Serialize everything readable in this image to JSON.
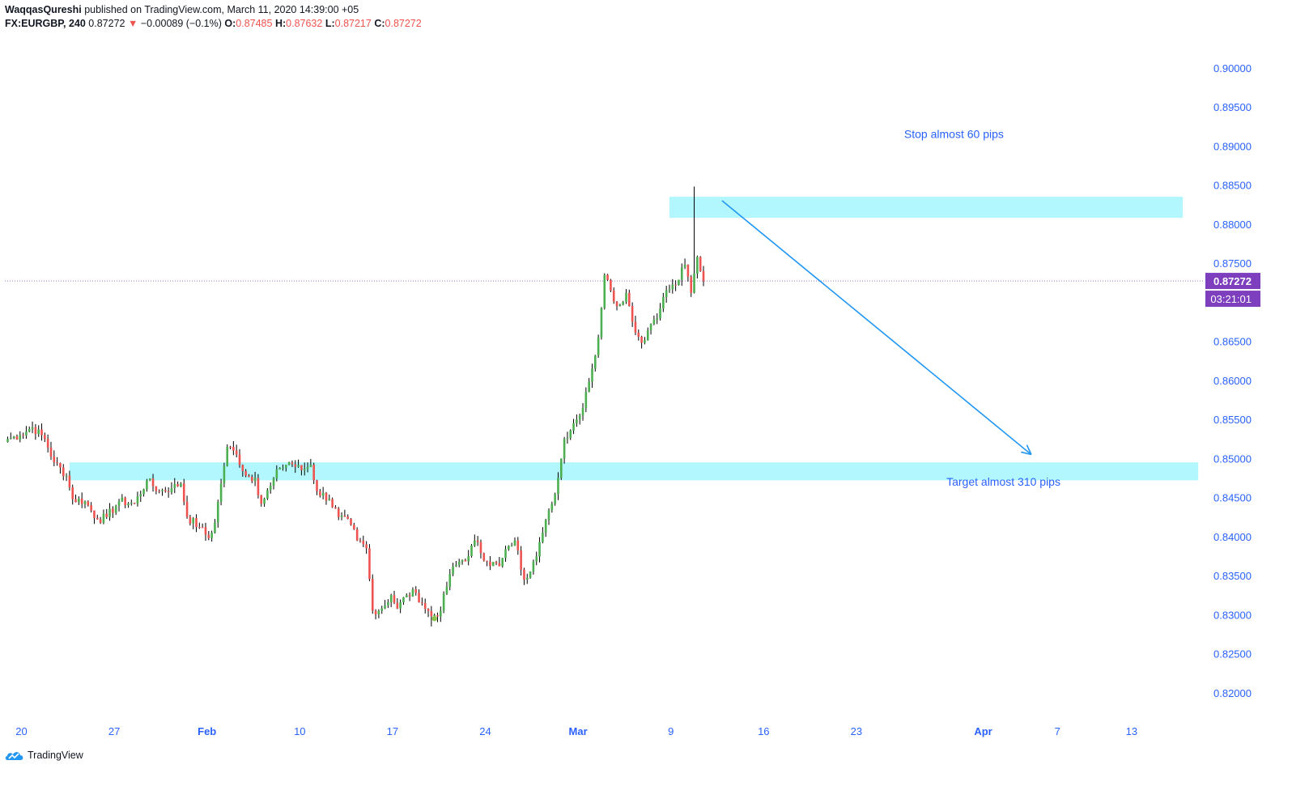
{
  "header": {
    "author": "WaqqasQureshi",
    "published": "published on TradingView.com, March 11, 2020 14:39:00 +05",
    "symbol": "FX:EURGBP, 240",
    "last": "0.87272",
    "arrow": "▼",
    "change": "−0.00089 (−0.1%)",
    "o_label": "O:",
    "o_value": "0.87485",
    "h_label": "H:",
    "h_value": "0.87632",
    "l_label": "L:",
    "l_value": "0.87217",
    "c_label": "C:",
    "c_value": "0.87272"
  },
  "branding": {
    "logo_text": "TradingView",
    "icon": "tradingview-cloud-icon"
  },
  "colors": {
    "up": "#4caf50",
    "down": "#ef5350",
    "wick": "#000000",
    "zone": "#b2f7fd",
    "annotation": "#2962ff",
    "arrow": "#2196f3",
    "price_tag": "#7e3fbf",
    "axis_text": "#2962ff",
    "date_text": "#2962ff"
  },
  "chart_data": {
    "type": "candlestick",
    "title": "",
    "symbol": "FX:EURGBP",
    "interval": "240",
    "ylim": [
      0.8175,
      0.9035
    ],
    "y_ticks": [
      "0.90000",
      "0.89500",
      "0.89000",
      "0.88500",
      "0.88000",
      "0.87500",
      "0.87000",
      "0.86500",
      "0.86000",
      "0.85500",
      "0.85000",
      "0.84500",
      "0.84000",
      "0.83500",
      "0.83000",
      "0.82500",
      "0.82000"
    ],
    "x_ticks": [
      {
        "label": "20",
        "bold": false,
        "index": 0
      },
      {
        "label": "27",
        "bold": false,
        "index": 30
      },
      {
        "label": "Feb",
        "bold": true,
        "index": 60
      },
      {
        "label": "10",
        "bold": false,
        "index": 90
      },
      {
        "label": "17",
        "bold": false,
        "index": 120
      },
      {
        "label": "24",
        "bold": false,
        "index": 150
      },
      {
        "label": "Mar",
        "bold": true,
        "index": 180
      },
      {
        "label": "9",
        "bold": false,
        "index": 210
      },
      {
        "label": "16",
        "bold": false,
        "index": 240
      },
      {
        "label": "23",
        "bold": false,
        "index": 270
      },
      {
        "label": "Apr",
        "bold": true,
        "index": 311
      },
      {
        "label": "7",
        "bold": false,
        "index": 335
      },
      {
        "label": "13",
        "bold": false,
        "index": 359
      }
    ],
    "anchor_closes": [
      [
        0,
        0.8525
      ],
      [
        4,
        0.853
      ],
      [
        8,
        0.854
      ],
      [
        12,
        0.8525
      ],
      [
        15,
        0.8495
      ],
      [
        19,
        0.8478
      ],
      [
        21,
        0.8448
      ],
      [
        25,
        0.8445
      ],
      [
        29,
        0.8422
      ],
      [
        32,
        0.8425
      ],
      [
        36,
        0.8445
      ],
      [
        41,
        0.8442
      ],
      [
        45,
        0.8472
      ],
      [
        49,
        0.8458
      ],
      [
        53,
        0.8462
      ],
      [
        56,
        0.8468
      ],
      [
        58,
        0.8425
      ],
      [
        62,
        0.8412
      ],
      [
        65,
        0.8398
      ],
      [
        67,
        0.8418
      ],
      [
        69,
        0.8468
      ],
      [
        71,
        0.8515
      ],
      [
        74,
        0.8505
      ],
      [
        77,
        0.8478
      ],
      [
        80,
        0.8475
      ],
      [
        82,
        0.8442
      ],
      [
        85,
        0.8465
      ],
      [
        88,
        0.8488
      ],
      [
        91,
        0.8495
      ],
      [
        95,
        0.8485
      ],
      [
        98,
        0.8492
      ],
      [
        100,
        0.8458
      ],
      [
        104,
        0.8448
      ],
      [
        107,
        0.8425
      ],
      [
        111,
        0.8415
      ],
      [
        113,
        0.8395
      ],
      [
        116,
        0.8385
      ],
      [
        118,
        0.8305
      ],
      [
        121,
        0.8308
      ],
      [
        124,
        0.8325
      ],
      [
        126,
        0.8308
      ],
      [
        129,
        0.8325
      ],
      [
        132,
        0.8328
      ],
      [
        134,
        0.8315
      ],
      [
        137,
        0.8298
      ],
      [
        140,
        0.8305
      ],
      [
        143,
        0.8352
      ],
      [
        146,
        0.8368
      ],
      [
        149,
        0.8375
      ],
      [
        151,
        0.8395
      ],
      [
        155,
        0.8368
      ],
      [
        159,
        0.8362
      ],
      [
        162,
        0.8388
      ],
      [
        164,
        0.8395
      ],
      [
        167,
        0.8345
      ],
      [
        170,
        0.8368
      ],
      [
        173,
        0.8405
      ],
      [
        176,
        0.8442
      ],
      [
        178,
        0.8475
      ],
      [
        180,
        0.8525
      ],
      [
        183,
        0.8545
      ],
      [
        185,
        0.8555
      ],
      [
        187,
        0.8585
      ],
      [
        189,
        0.8615
      ],
      [
        191,
        0.8655
      ],
      [
        193,
        0.8735
      ],
      [
        195,
        0.8715
      ],
      [
        197,
        0.8695
      ],
      [
        200,
        0.8712
      ],
      [
        202,
        0.8675
      ],
      [
        205,
        0.8648
      ],
      [
        208,
        0.8672
      ],
      [
        211,
        0.8692
      ],
      [
        213,
        0.8715
      ],
      [
        216,
        0.8722
      ],
      [
        219,
        0.8748
      ],
      [
        221,
        0.8712
      ],
      [
        223,
        0.8758
      ],
      [
        225,
        0.8727
      ]
    ],
    "last_price": 0.87272,
    "last_price_label": "0.87272",
    "countdown": "03:21:01",
    "zones": [
      {
        "name": "stop-zone",
        "y_top": 0.8835,
        "y_bottom": 0.8808,
        "x_start_index": 214,
        "x_end_index": 380
      },
      {
        "name": "target-zone",
        "y_top": 0.8495,
        "y_bottom": 0.8472,
        "x_start_index": 20,
        "x_end_index": 385
      }
    ],
    "annotations": [
      {
        "text": "Stop almost 60 pips",
        "index": 306,
        "y": 0.891
      },
      {
        "text": "Target almost 310 pips",
        "index": 322,
        "y": 0.8465
      }
    ],
    "arrow": {
      "from_index": 231,
      "from_y": 0.883,
      "to_index": 331,
      "to_y": 0.8505
    }
  }
}
